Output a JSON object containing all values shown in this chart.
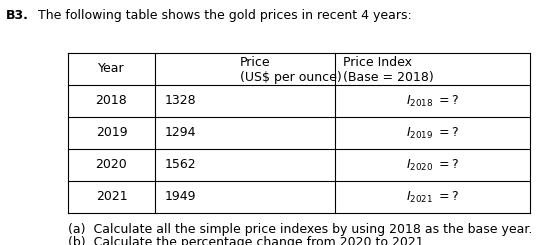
{
  "title_bold": "B3.",
  "title_text": "  The following table shows the gold prices in recent 4 years:",
  "col_headers_r1": [
    "Year",
    "Price",
    "Price Index"
  ],
  "col_headers_r2": [
    "",
    "(US$ per ounce)",
    "(Base = 2018)"
  ],
  "rows": [
    [
      "2018",
      "1328",
      "2018"
    ],
    [
      "2019",
      "1294",
      "2019"
    ],
    [
      "2020",
      "1562",
      "2020"
    ],
    [
      "2021",
      "1949",
      "2021"
    ]
  ],
  "question_a": "(a)  Calculate all the simple price indexes by using 2018 as the base year.",
  "question_b": "(b)  Calculate the percentage change from 2020 to 2021.",
  "bg_color": "#ffffff",
  "text_color": "#000000",
  "font_size": 9.0
}
